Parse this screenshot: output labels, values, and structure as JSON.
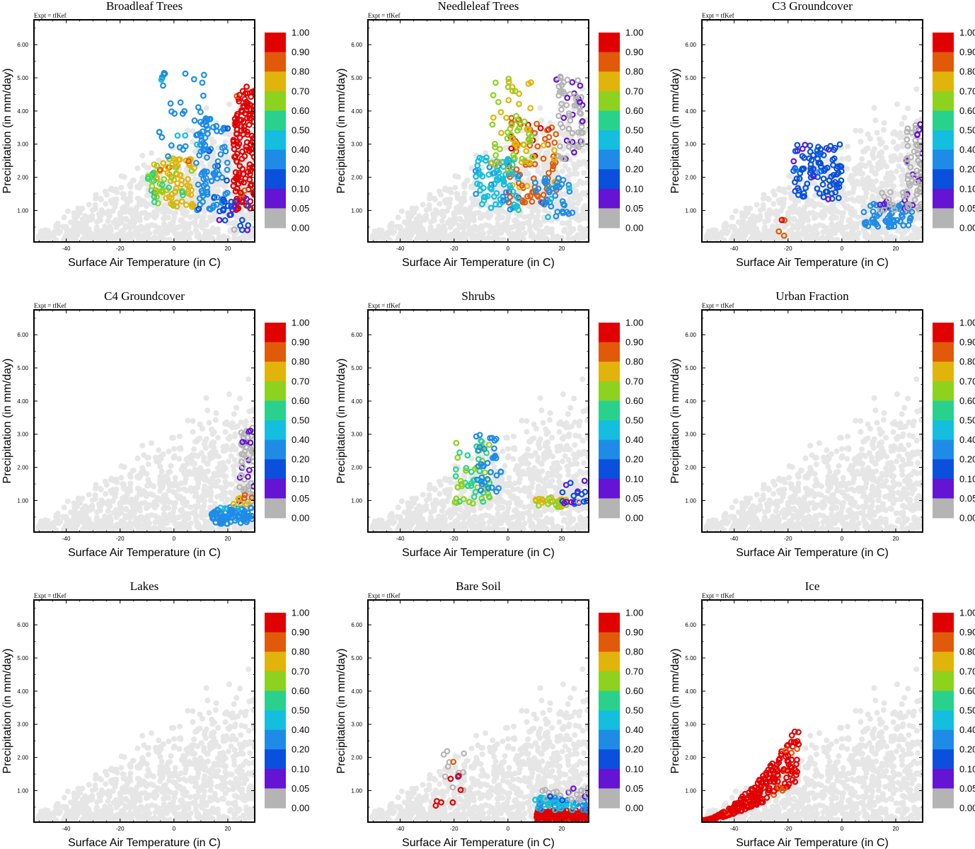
{
  "colorbar": {
    "labels": [
      "1.00",
      "0.90",
      "0.80",
      "0.70",
      "0.60",
      "0.50",
      "0.40",
      "0.20",
      "0.10",
      "0.05",
      "0.00"
    ],
    "colors": [
      "#e00000",
      "#e05a0a",
      "#e0b40a",
      "#8cd21e",
      "#28d28c",
      "#14bede",
      "#1e8ce6",
      "#0a50dc",
      "#6414d2",
      "#b4b4b4"
    ]
  },
  "background_color": "#e6e6e6",
  "unmapped_color": "#b4b4b4",
  "chart_data": [
    {
      "type": "scatter",
      "title": "Broadleaf Trees",
      "expt": "Expt = tfKef",
      "xlabel": "Surface Air Temperature (in C)",
      "ylabel": "Precipitation (in mm/day)",
      "xlim": [
        -52,
        30
      ],
      "ylim": [
        0.05,
        6.75
      ],
      "xticks": [
        "-40",
        "-20",
        "0",
        "20"
      ],
      "yticks": [
        "1.00",
        "2.00",
        "3.00",
        "4.00",
        "5.00",
        "6.00"
      ],
      "highlight_clusters": [
        {
          "x": [
            22,
            30
          ],
          "y": [
            1.0,
            4.8
          ],
          "fraction": 0.95,
          "count": 140
        },
        {
          "x": [
            8,
            20
          ],
          "y": [
            1.0,
            3.8
          ],
          "fraction": 0.25,
          "count": 90
        },
        {
          "x": [
            -8,
            8
          ],
          "y": [
            1.1,
            2.6
          ],
          "fraction": 0.75,
          "count": 70
        },
        {
          "x": [
            -6,
            12
          ],
          "y": [
            2.5,
            5.2
          ],
          "fraction": 0.35,
          "count": 40
        },
        {
          "x": [
            16,
            28
          ],
          "y": [
            0.3,
            1.4
          ],
          "fraction": 0.1,
          "count": 25
        },
        {
          "x": [
            -10,
            4
          ],
          "y": [
            1.2,
            2.2
          ],
          "fraction": 0.6,
          "count": 25
        }
      ]
    },
    {
      "type": "scatter",
      "title": "Needleleaf Trees",
      "expt": "Expt = tfKef",
      "xlabel": "Surface Air Temperature (in C)",
      "ylabel": "Precipitation (in mm/day)",
      "xlim": [
        -52,
        30
      ],
      "ylim": [
        0.05,
        6.75
      ],
      "xticks": [
        "-40",
        "-20",
        "0",
        "20"
      ],
      "yticks": [
        "1.00",
        "2.00",
        "3.00",
        "4.00",
        "5.00",
        "6.00"
      ],
      "highlight_clusters": [
        {
          "x": [
            18,
            28
          ],
          "y": [
            2.5,
            5.1
          ],
          "fraction": 0.02,
          "count": 70
        },
        {
          "x": [
            0,
            18
          ],
          "y": [
            1.2,
            3.8
          ],
          "fraction": 0.85,
          "count": 90
        },
        {
          "x": [
            -12,
            4
          ],
          "y": [
            1.0,
            2.6
          ],
          "fraction": 0.45,
          "count": 80
        },
        {
          "x": [
            -6,
            10
          ],
          "y": [
            2.2,
            5.0
          ],
          "fraction": 0.7,
          "count": 60
        },
        {
          "x": [
            10,
            24
          ],
          "y": [
            0.8,
            2.0
          ],
          "fraction": 0.35,
          "count": 40
        }
      ]
    },
    {
      "type": "scatter",
      "title": "C3 Groundcover",
      "expt": "Expt = tfKef",
      "xlabel": "Surface Air Temperature (in C)",
      "ylabel": "Precipitation (in mm/day)",
      "xlim": [
        -52,
        30
      ],
      "ylim": [
        0.05,
        6.75
      ],
      "xticks": [
        "-40",
        "-20",
        "0",
        "20"
      ],
      "yticks": [
        "1.00",
        "2.00",
        "3.00",
        "4.00",
        "5.00",
        "6.00"
      ],
      "highlight_clusters": [
        {
          "x": [
            -18,
            0
          ],
          "y": [
            1.3,
            3.0
          ],
          "fraction": 0.15,
          "count": 100
        },
        {
          "x": [
            24,
            30
          ],
          "y": [
            1.0,
            3.6
          ],
          "fraction": 0.02,
          "count": 70
        },
        {
          "x": [
            8,
            26
          ],
          "y": [
            0.5,
            1.2
          ],
          "fraction": 0.3,
          "count": 60
        },
        {
          "x": [
            14,
            26
          ],
          "y": [
            1.0,
            1.6
          ],
          "fraction": 0.02,
          "count": 25
        },
        {
          "x": [
            -24,
            -20
          ],
          "y": [
            0.2,
            0.8
          ],
          "fraction": 0.9,
          "count": 4
        }
      ]
    },
    {
      "type": "scatter",
      "title": "C4 Groundcover",
      "expt": "Expt = tfKef",
      "xlabel": "Surface Air Temperature (in C)",
      "ylabel": "Precipitation (in mm/day)",
      "xlim": [
        -52,
        30
      ],
      "ylim": [
        0.05,
        6.75
      ],
      "xticks": [
        "-40",
        "-20",
        "0",
        "20"
      ],
      "yticks": [
        "1.00",
        "2.00",
        "3.00",
        "4.00",
        "5.00",
        "6.00"
      ],
      "highlight_clusters": [
        {
          "x": [
            14,
            30
          ],
          "y": [
            0.3,
            0.8
          ],
          "fraction": 0.35,
          "count": 80
        },
        {
          "x": [
            24,
            30
          ],
          "y": [
            0.9,
            3.2
          ],
          "fraction": 0.02,
          "count": 50
        },
        {
          "x": [
            22,
            30
          ],
          "y": [
            0.8,
            1.2
          ],
          "fraction": 0.8,
          "count": 10
        }
      ]
    },
    {
      "type": "scatter",
      "title": "Shrubs",
      "expt": "Expt = tfKef",
      "xlabel": "Surface Air Temperature (in C)",
      "ylabel": "Precipitation (in mm/day)",
      "xlim": [
        -52,
        30
      ],
      "ylim": [
        0.05,
        6.75
      ],
      "xticks": [
        "-40",
        "-20",
        "0",
        "20"
      ],
      "yticks": [
        "1.00",
        "2.00",
        "3.00",
        "4.00",
        "5.00",
        "6.00"
      ],
      "highlight_clusters": [
        {
          "x": [
            -20,
            -6
          ],
          "y": [
            0.9,
            2.8
          ],
          "fraction": 0.6,
          "count": 55
        },
        {
          "x": [
            -12,
            -2
          ],
          "y": [
            1.2,
            3.0
          ],
          "fraction": 0.3,
          "count": 35
        },
        {
          "x": [
            10,
            22
          ],
          "y": [
            0.8,
            1.1
          ],
          "fraction": 0.7,
          "count": 25
        },
        {
          "x": [
            20,
            30
          ],
          "y": [
            0.9,
            1.6
          ],
          "fraction": 0.1,
          "count": 20
        }
      ]
    },
    {
      "type": "scatter",
      "title": "Urban Fraction",
      "expt": "Expt = tfKef",
      "xlabel": "Surface Air Temperature (in C)",
      "ylabel": "Precipitation (in mm/day)",
      "xlim": [
        -52,
        30
      ],
      "ylim": [
        0.05,
        6.75
      ],
      "xticks": [
        "-40",
        "-20",
        "0",
        "20"
      ],
      "yticks": [
        "1.00",
        "2.00",
        "3.00",
        "4.00",
        "5.00",
        "6.00"
      ],
      "highlight_clusters": []
    },
    {
      "type": "scatter",
      "title": "Lakes",
      "expt": "Expt = tfKef",
      "xlabel": "Surface Air Temperature (in C)",
      "ylabel": "Precipitation (in mm/day)",
      "xlim": [
        -52,
        30
      ],
      "ylim": [
        0.05,
        6.75
      ],
      "xticks": [
        "-40",
        "-20",
        "0",
        "20"
      ],
      "yticks": [
        "1.00",
        "2.00",
        "3.00",
        "4.00",
        "5.00",
        "6.00"
      ],
      "highlight_clusters": []
    },
    {
      "type": "scatter",
      "title": "Bare Soil",
      "expt": "Expt = tfKef",
      "xlabel": "Surface Air Temperature (in C)",
      "ylabel": "Precipitation (in mm/day)",
      "xlim": [
        -52,
        30
      ],
      "ylim": [
        0.05,
        6.75
      ],
      "xticks": [
        "-40",
        "-20",
        "0",
        "20"
      ],
      "yticks": [
        "1.00",
        "2.00",
        "3.00",
        "4.00",
        "5.00",
        "6.00"
      ],
      "highlight_clusters": [
        {
          "x": [
            10,
            30
          ],
          "y": [
            0.1,
            0.4
          ],
          "fraction": 0.97,
          "count": 120
        },
        {
          "x": [
            10,
            30
          ],
          "y": [
            0.4,
            0.8
          ],
          "fraction": 0.4,
          "count": 60
        },
        {
          "x": [
            12,
            30
          ],
          "y": [
            0.7,
            1.2
          ],
          "fraction": 0.05,
          "count": 25
        },
        {
          "x": [
            -24,
            -16
          ],
          "y": [
            1.0,
            2.2
          ],
          "fraction": 0.02,
          "count": 12
        },
        {
          "x": [
            -28,
            -16
          ],
          "y": [
            0.5,
            2.5
          ],
          "fraction": 0.95,
          "count": 8
        }
      ]
    },
    {
      "type": "scatter",
      "title": "Ice",
      "expt": "Expt = tfKef",
      "xlabel": "Surface Air Temperature (in C)",
      "ylabel": "Precipitation (in mm/day)",
      "xlim": [
        -52,
        30
      ],
      "ylim": [
        0.05,
        6.75
      ],
      "xticks": [
        "-40",
        "-20",
        "0",
        "20"
      ],
      "yticks": [
        "1.00",
        "2.00",
        "3.00",
        "4.00",
        "5.00",
        "6.00"
      ],
      "highlight_clusters": [
        {
          "x": [
            -52,
            -16
          ],
          "y": [
            0.1,
            3.0
          ],
          "fraction": 0.95,
          "count": 260,
          "shape": "ramp"
        }
      ]
    }
  ]
}
